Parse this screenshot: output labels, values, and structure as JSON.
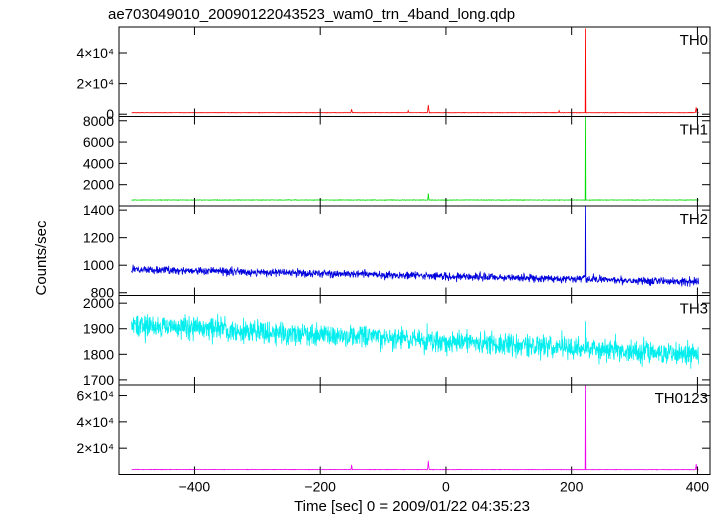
{
  "chart_data": {
    "type": "line",
    "title": "ae703049010_20090122043523_wam0_trn_4band_long.qdp",
    "xlabel": "Time [sec] 0 = 2009/01/22 04:35:23",
    "ylabel": "Counts/sec",
    "xlim": [
      -520,
      420
    ],
    "x_ticks": [
      -400,
      -200,
      0,
      200,
      400
    ],
    "x_tick_labels": [
      "−400",
      "−200",
      "0",
      "200",
      "400"
    ],
    "data_start": -500,
    "data_end": 402,
    "spike_time": 222,
    "panels": [
      {
        "name": "TH0",
        "color": "#ff0000",
        "ylim": [
          -1500,
          57000
        ],
        "ticks": [
          0,
          20000,
          40000
        ],
        "tick_labels": [
          "0",
          "2×10⁴",
          "4×10⁴"
        ],
        "baseline": 1000,
        "baseline_end": 1000,
        "noise": 120,
        "spike_peak": 56000,
        "bumps": [
          [
            -150,
            2800
          ],
          [
            -60,
            1800
          ],
          [
            -28,
            5500
          ],
          [
            180,
            1800
          ],
          [
            398,
            4000
          ]
        ]
      },
      {
        "name": "TH1",
        "color": "#00dd00",
        "ylim": [
          0,
          8400
        ],
        "ticks": [
          2000,
          4000,
          6000,
          8000
        ],
        "tick_labels": [
          "2000",
          "4000",
          "6000",
          "8000"
        ],
        "baseline": 560,
        "baseline_end": 560,
        "noise": 25,
        "spike_peak": 8400,
        "bumps": [
          [
            -28,
            900
          ]
        ]
      },
      {
        "name": "TH2",
        "color": "#0000dd",
        "ylim": [
          780,
          1430
        ],
        "ticks": [
          800,
          1000,
          1200,
          1400
        ],
        "tick_labels": [
          "800",
          "1000",
          "1200",
          "1400"
        ],
        "baseline": 970,
        "baseline_end": 880,
        "noise": 28,
        "spike_peak": 1430,
        "bumps": []
      },
      {
        "name": "TH3",
        "color": "#00eeee",
        "ylim": [
          1680,
          2030
        ],
        "ticks": [
          1700,
          1800,
          1900,
          2000
        ],
        "tick_labels": [
          "1700",
          "1800",
          "1900",
          "2000"
        ],
        "baseline": 1915,
        "baseline_end": 1800,
        "noise": 45,
        "spike_peak": 1930,
        "bumps": []
      },
      {
        "name": "TH0123",
        "color": "#ee00ee",
        "ylim": [
          0,
          68000
        ],
        "ticks": [
          20000,
          40000,
          60000
        ],
        "tick_labels": [
          "2×10⁴",
          "4×10⁴",
          "6×10⁴"
        ],
        "baseline": 3800,
        "baseline_end": 3700,
        "noise": 150,
        "spike_peak": 68000,
        "bumps": [
          [
            -150,
            5500
          ],
          [
            -28,
            8500
          ],
          [
            398,
            6000
          ]
        ]
      }
    ]
  }
}
